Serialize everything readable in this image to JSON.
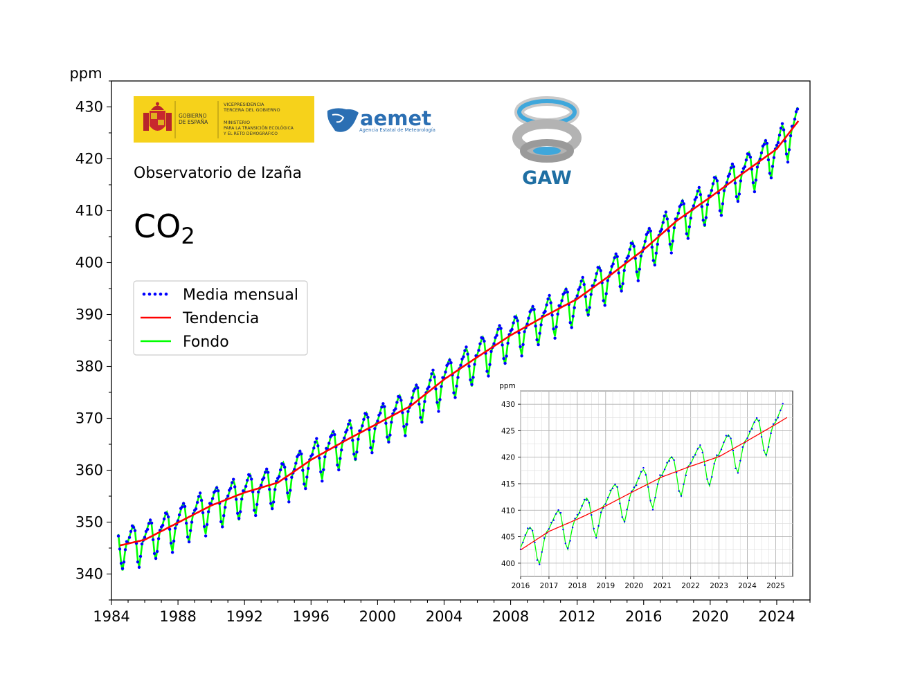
{
  "logos": {
    "gobierno": {
      "line1": "GOBIERNO",
      "line2": "DE ESPAÑA",
      "line3": "VICEPRESIDENCIA",
      "line4": "TERCERA DEL GOBIERNO",
      "line5": "MINISTERIO",
      "line6": "PARA LA TRANSICIÓN ECOLÓGICA",
      "line7": "Y EL RETO DEMOGRÁFICO"
    },
    "aemet": {
      "name": "aemet",
      "subtitle": "Agencia Estatal de Meteorología"
    },
    "gaw": {
      "name": "GAW"
    }
  },
  "colors": {
    "monthly": "#0000ff",
    "trend": "#ff0000",
    "background": "#00ff00",
    "logo_yellow": "#f6d21b",
    "aemet_blue": "#2b6fb3",
    "gaw_blue": "#1f6fa3"
  },
  "chart_data": [
    {
      "type": "line",
      "station": "Observatorio de Izaña",
      "gas": "CO",
      "gas_subscript": "2",
      "ylabel": "ppm",
      "xlim": [
        1984,
        2026
      ],
      "ylim": [
        335,
        435
      ],
      "x_ticks": [
        "1984",
        "1988",
        "1992",
        "1996",
        "2000",
        "2004",
        "2008",
        "2012",
        "2016",
        "2020",
        "2024"
      ],
      "y_ticks": [
        "340",
        "350",
        "360",
        "370",
        "380",
        "390",
        "400",
        "410",
        "420",
        "430"
      ],
      "legend": {
        "position": "left",
        "entries": [
          "Media mensual",
          "Tendencia",
          "Fondo"
        ]
      },
      "series": [
        {
          "name": "Media mensual",
          "style": "points",
          "start": "1984-06",
          "end": "2025-04"
        },
        {
          "name": "Tendencia",
          "style": "line",
          "x": [
            1984.5,
            1986,
            1988,
            1990,
            1992,
            1994,
            1996,
            1998,
            2000,
            2002,
            2004,
            2006,
            2008,
            2010,
            2012,
            2014,
            2016,
            2018,
            2020,
            2022,
            2024,
            2025.3
          ],
          "y": [
            345.5,
            346.6,
            349.9,
            353.2,
            355.7,
            357.6,
            362.0,
            365.6,
            369.0,
            372.4,
            377.5,
            381.8,
            386.0,
            389.6,
            393.0,
            397.6,
            402.5,
            408.1,
            412.6,
            417.3,
            421.9,
            427.3
          ]
        },
        {
          "name": "Fondo",
          "style": "line",
          "start": "1984-06",
          "end": "2025-04"
        }
      ]
    },
    {
      "type": "line",
      "ylabel": "ppm",
      "xlim": [
        2016,
        2025.6
      ],
      "ylim": [
        397.5,
        432.5
      ],
      "grid": true,
      "x_ticks": [
        "2016",
        "2017",
        "2018",
        "2019",
        "2020",
        "2021",
        "2022",
        "2023",
        "2024",
        "2025"
      ],
      "y_ticks": [
        "400",
        "405",
        "410",
        "415",
        "420",
        "425",
        "430"
      ],
      "series": [
        {
          "name": "Media mensual",
          "style": "points"
        },
        {
          "name": "Tendencia",
          "style": "line",
          "x": [
            2016,
            2017,
            2018,
            2019,
            2020,
            2021,
            2022,
            2023,
            2024,
            2025,
            2025.4
          ],
          "y": [
            402.5,
            406.0,
            408.3,
            410.8,
            413.6,
            416.3,
            418.3,
            420.1,
            423.1,
            426.2,
            427.5
          ]
        },
        {
          "name": "Fondo",
          "style": "line"
        }
      ]
    }
  ]
}
